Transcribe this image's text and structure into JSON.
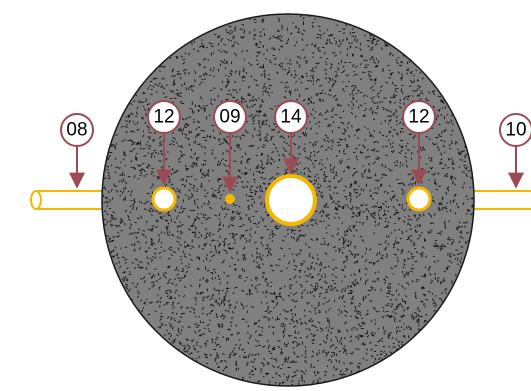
{
  "colors": {
    "background": "#ffffff",
    "disc_fill": "#808080",
    "disc_outline": "#1a1a1a",
    "speckle": "#111111",
    "rod_outline": "#f5b800",
    "rod_fill": "#ffffff",
    "hole_outline": "#f5b800",
    "hole_fill": "#ffffff",
    "callout_stroke": "#9c4b52",
    "callout_fill": "#ffffff",
    "callout_text": "#000000"
  },
  "callouts": [
    {
      "id": "left-rod",
      "label": "08"
    },
    {
      "id": "left-hole",
      "label": "12"
    },
    {
      "id": "small-hole",
      "label": "09"
    },
    {
      "id": "center-hole",
      "label": "14"
    },
    {
      "id": "right-hole",
      "label": "12"
    },
    {
      "id": "right-rod",
      "label": "10"
    }
  ]
}
